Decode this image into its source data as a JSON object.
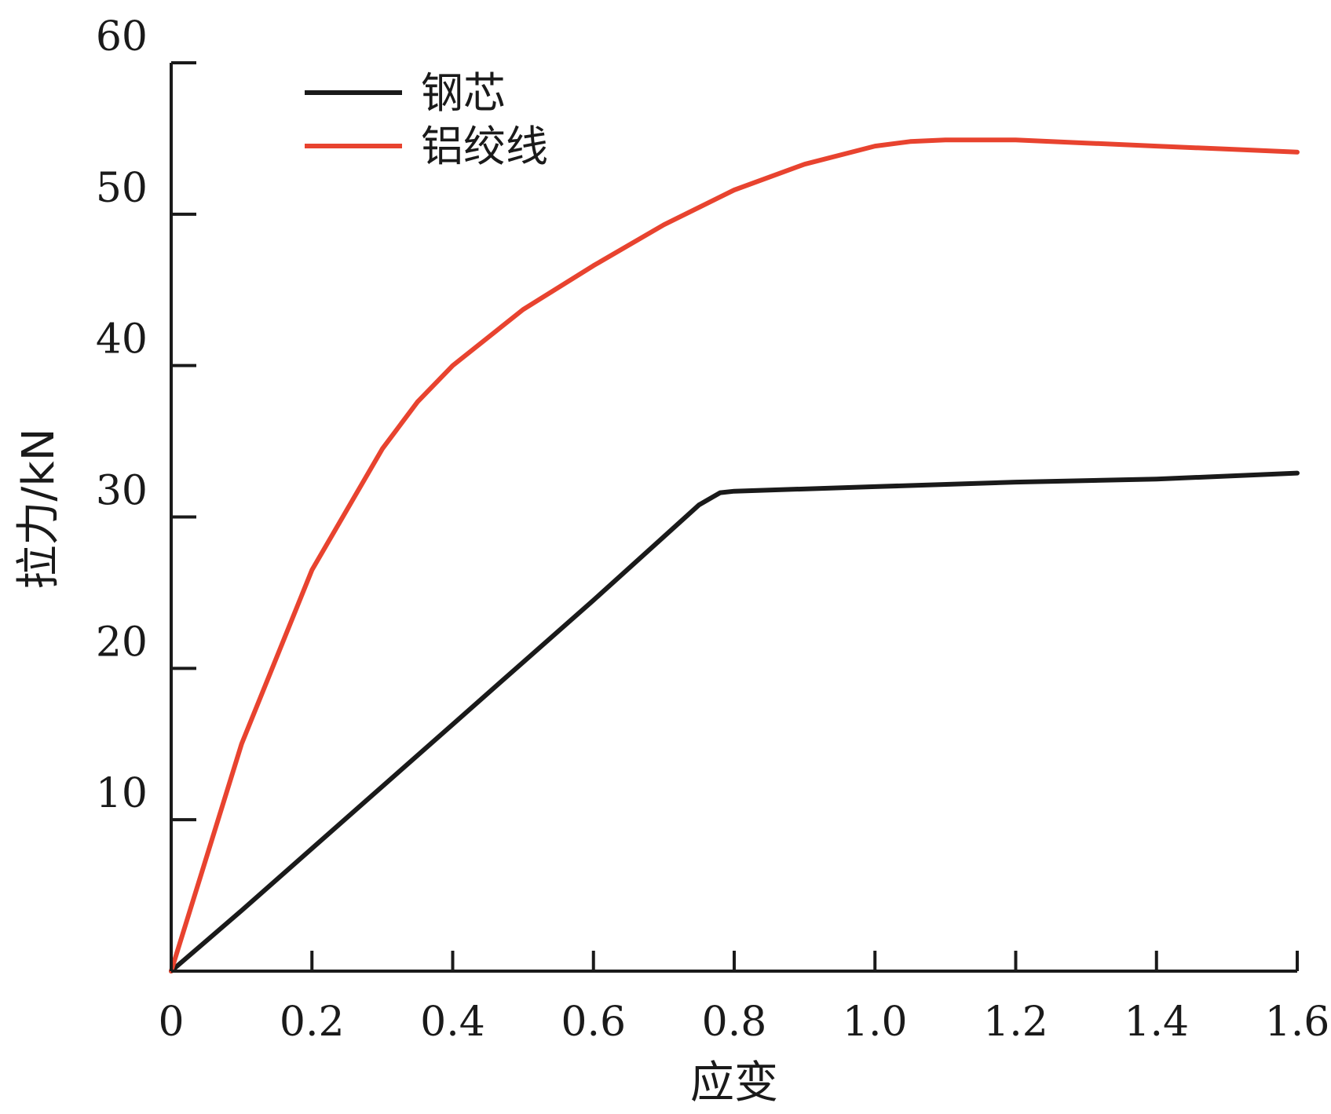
{
  "chart_data": {
    "type": "line",
    "title": "",
    "xlabel": "应变",
    "ylabel": "拉力/kN",
    "xlim": [
      0,
      1.6
    ],
    "ylim": [
      0,
      60
    ],
    "x_ticks": [
      "0",
      "0.2",
      "0.4",
      "0.6",
      "0.8",
      "1.0",
      "1.2",
      "1.4",
      "1.6"
    ],
    "y_ticks": [
      "10",
      "20",
      "30",
      "40",
      "50",
      "60"
    ],
    "x_tick_values": [
      0,
      0.2,
      0.4,
      0.6,
      0.8,
      1.0,
      1.2,
      1.4,
      1.6
    ],
    "y_tick_values": [
      10,
      20,
      30,
      40,
      50,
      60
    ],
    "grid": false,
    "legend_position": "top-left",
    "series": [
      {
        "name": "钢芯",
        "color": "#1a1a1a",
        "points": [
          [
            0,
            0
          ],
          [
            0.1,
            4.0
          ],
          [
            0.2,
            8.1
          ],
          [
            0.3,
            12.2
          ],
          [
            0.4,
            16.3
          ],
          [
            0.5,
            20.4
          ],
          [
            0.6,
            24.5
          ],
          [
            0.7,
            28.7
          ],
          [
            0.75,
            30.8
          ],
          [
            0.78,
            31.6
          ],
          [
            0.8,
            31.7
          ],
          [
            1.0,
            32.0
          ],
          [
            1.2,
            32.3
          ],
          [
            1.4,
            32.5
          ],
          [
            1.6,
            32.9
          ]
        ]
      },
      {
        "name": "铝绞线",
        "color": "#e8432f",
        "points": [
          [
            0,
            0
          ],
          [
            0.1,
            15.0
          ],
          [
            0.2,
            26.5
          ],
          [
            0.3,
            34.5
          ],
          [
            0.35,
            37.6
          ],
          [
            0.4,
            40.0
          ],
          [
            0.5,
            43.7
          ],
          [
            0.6,
            46.6
          ],
          [
            0.7,
            49.3
          ],
          [
            0.8,
            51.6
          ],
          [
            0.9,
            53.3
          ],
          [
            1.0,
            54.5
          ],
          [
            1.05,
            54.8
          ],
          [
            1.1,
            54.9
          ],
          [
            1.2,
            54.9
          ],
          [
            1.3,
            54.7
          ],
          [
            1.4,
            54.5
          ],
          [
            1.5,
            54.3
          ],
          [
            1.6,
            54.1
          ]
        ]
      }
    ]
  }
}
